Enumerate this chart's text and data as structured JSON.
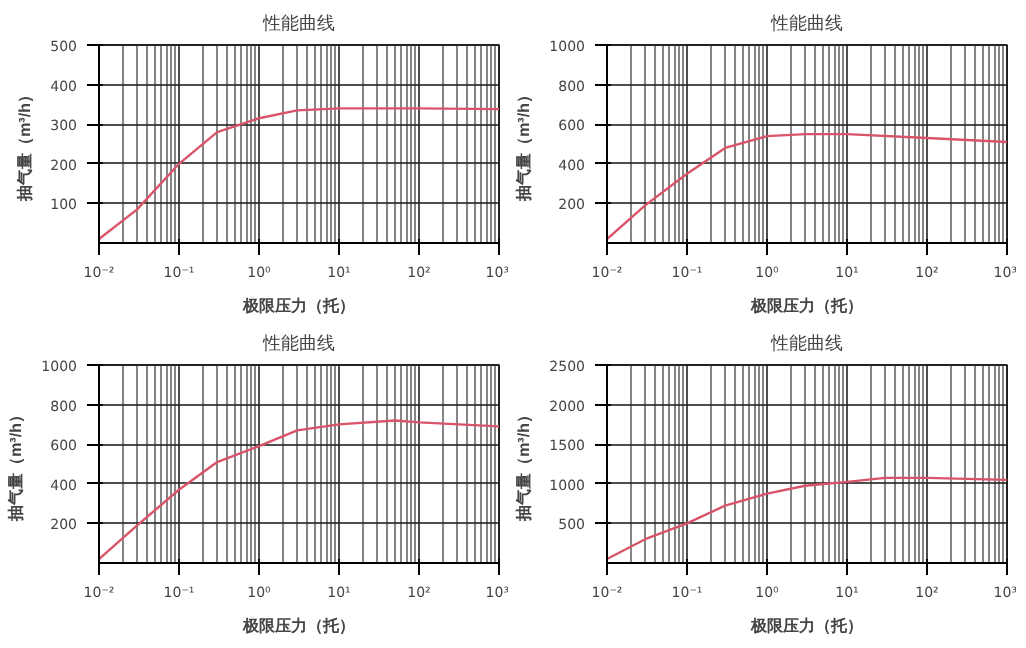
{
  "chart_data": [
    {
      "type": "line",
      "title": "性能曲线",
      "xlabel": "极限压力（托）",
      "ylabel": "抽气量（m³/h）",
      "log": "x",
      "grid": true,
      "marker": "none",
      "line_style": "solid",
      "x": [
        0.01,
        0.03,
        0.1,
        0.3,
        1,
        3,
        10,
        100,
        1000
      ],
      "series": [
        {
          "color": "#d9546a",
          "values": [
            10,
            85,
            200,
            280,
            315,
            335,
            340,
            340,
            338
          ]
        }
      ],
      "xlim": [
        0.01,
        1000
      ],
      "ylim": [
        0,
        500
      ],
      "xticks": [
        {
          "value": 0.01,
          "label": "10⁻²"
        },
        {
          "value": 0.1,
          "label": "10⁻¹"
        },
        {
          "value": 1,
          "label": "10⁰"
        },
        {
          "value": 10,
          "label": "10¹"
        },
        {
          "value": 100,
          "label": "10²"
        },
        {
          "value": 1000,
          "label": "10³"
        }
      ],
      "yticks": [
        100,
        200,
        300,
        400,
        500
      ]
    },
    {
      "type": "line",
      "title": "性能曲线",
      "xlabel": "极限压力（托）",
      "ylabel": "抽气量（m³/h）",
      "log": "x",
      "grid": true,
      "marker": "none",
      "line_style": "solid",
      "x": [
        0.01,
        0.03,
        0.1,
        0.3,
        1,
        3,
        10,
        100,
        1000
      ],
      "series": [
        {
          "color": "#d9546a",
          "values": [
            20,
            190,
            350,
            480,
            540,
            550,
            550,
            530,
            510
          ]
        }
      ],
      "xlim": [
        0.01,
        1000
      ],
      "ylim": [
        0,
        1000
      ],
      "xticks": [
        {
          "value": 0.01,
          "label": "10⁻²"
        },
        {
          "value": 0.1,
          "label": "10⁻¹"
        },
        {
          "value": 1,
          "label": "10⁰"
        },
        {
          "value": 10,
          "label": "10¹"
        },
        {
          "value": 100,
          "label": "10²"
        },
        {
          "value": 1000,
          "label": "10³"
        }
      ],
      "yticks": [
        200,
        400,
        600,
        800,
        1000
      ]
    },
    {
      "type": "line",
      "title": "性能曲线",
      "xlabel": "极限压力（托）",
      "ylabel": "抽气量（m³/h）",
      "log": "x",
      "grid": true,
      "marker": "none",
      "line_style": "solid",
      "x": [
        0.01,
        0.03,
        0.1,
        0.3,
        1,
        3,
        10,
        50,
        100,
        1000
      ],
      "series": [
        {
          "color": "#d9546a",
          "values": [
            20,
            190,
            370,
            510,
            590,
            670,
            700,
            720,
            710,
            690
          ]
        }
      ],
      "xlim": [
        0.01,
        1000
      ],
      "ylim": [
        0,
        1000
      ],
      "xticks": [
        {
          "value": 0.01,
          "label": "10⁻²"
        },
        {
          "value": 0.1,
          "label": "10⁻¹"
        },
        {
          "value": 1,
          "label": "10⁰"
        },
        {
          "value": 10,
          "label": "10¹"
        },
        {
          "value": 100,
          "label": "10²"
        },
        {
          "value": 1000,
          "label": "10³"
        }
      ],
      "yticks": [
        200,
        400,
        600,
        800,
        1000
      ]
    },
    {
      "type": "line",
      "title": "性能曲线",
      "xlabel": "极限压力（托）",
      "ylabel": "抽气量（m³/h）",
      "log": "x",
      "grid": true,
      "marker": "none",
      "line_style": "solid",
      "x": [
        0.01,
        0.03,
        0.1,
        0.3,
        1,
        3,
        10,
        30,
        100,
        1000
      ],
      "series": [
        {
          "color": "#d9546a",
          "values": [
            50,
            300,
            500,
            725,
            875,
            975,
            1025,
            1075,
            1075,
            1050
          ]
        }
      ],
      "xlim": [
        0.01,
        1000
      ],
      "ylim": [
        0,
        2500
      ],
      "xticks": [
        {
          "value": 0.01,
          "label": "10⁻²"
        },
        {
          "value": 0.1,
          "label": "10⁻¹"
        },
        {
          "value": 1,
          "label": "10⁰"
        },
        {
          "value": 10,
          "label": "10¹"
        },
        {
          "value": 100,
          "label": "10²"
        },
        {
          "value": 1000,
          "label": "10³"
        }
      ],
      "yticks": [
        500,
        1000,
        1500,
        2000,
        2500
      ]
    }
  ]
}
